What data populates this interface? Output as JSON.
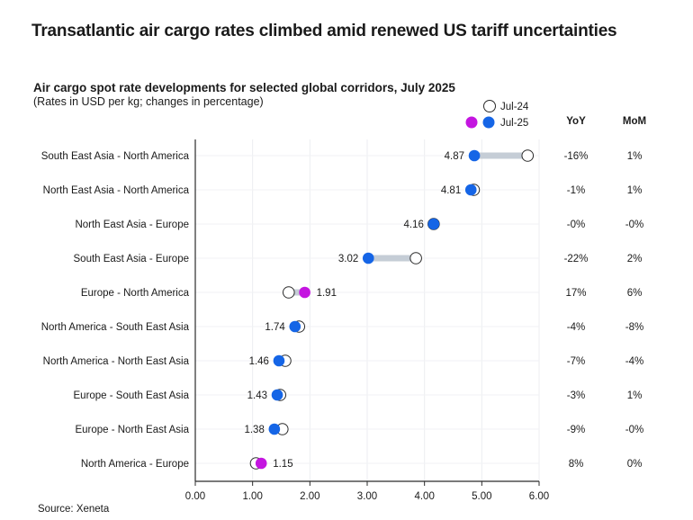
{
  "headline": "Transatlantic air cargo rates climbed amid renewed US tariff uncertainties",
  "source": "Source: Xeneta",
  "colors": {
    "jul25": "#1565e6",
    "highlight": "#c415e0",
    "connector": "#c5cdd6",
    "jul24_fill": "#ffffff",
    "jul24_stroke": "#2b2b2b"
  },
  "chart_data": {
    "type": "dumbbell",
    "title": "Air cargo spot rate developments for selected global corridors, July 2025",
    "subtitle": "(Rates in USD per kg; changes in percentage)",
    "legend": {
      "jul24": "Jul-24",
      "jul25": "Jul-25",
      "placement": "top-right"
    },
    "xlim": [
      0,
      6
    ],
    "xticks": [
      "0.00",
      "1.00",
      "2.00",
      "3.00",
      "4.00",
      "5.00",
      "6.00"
    ],
    "columns": {
      "yoy": "YoY",
      "mom": "MoM"
    },
    "grid": true,
    "categories": [
      "South East Asia - North America",
      "North East Asia - North America",
      "North East Asia - Europe",
      "South East Asia - Europe",
      "Europe - North America",
      "North America - South East Asia",
      "North America - North East Asia",
      "Europe - South East Asia",
      "Europe - North East Asia",
      "North America - Europe"
    ],
    "series": [
      {
        "name": "Jul-24",
        "values": [
          5.8,
          4.86,
          4.16,
          3.85,
          1.63,
          1.81,
          1.57,
          1.48,
          1.52,
          1.06
        ]
      },
      {
        "name": "Jul-25",
        "values": [
          4.87,
          4.81,
          4.16,
          3.02,
          1.91,
          1.74,
          1.46,
          1.43,
          1.38,
          1.15
        ]
      }
    ],
    "value_labels": [
      "4.87",
      "4.81",
      "4.16",
      "3.02",
      "1.91",
      "1.74",
      "1.46",
      "1.43",
      "1.38",
      "1.15"
    ],
    "highlighted": [
      false,
      false,
      false,
      false,
      true,
      false,
      false,
      false,
      false,
      true
    ],
    "yoy": [
      "-16%",
      "-1%",
      "-0%",
      "-22%",
      "17%",
      "-4%",
      "-7%",
      "-3%",
      "-9%",
      "8%"
    ],
    "mom": [
      "1%",
      "1%",
      "-0%",
      "2%",
      "6%",
      "-8%",
      "-4%",
      "1%",
      "-0%",
      "0%"
    ]
  }
}
